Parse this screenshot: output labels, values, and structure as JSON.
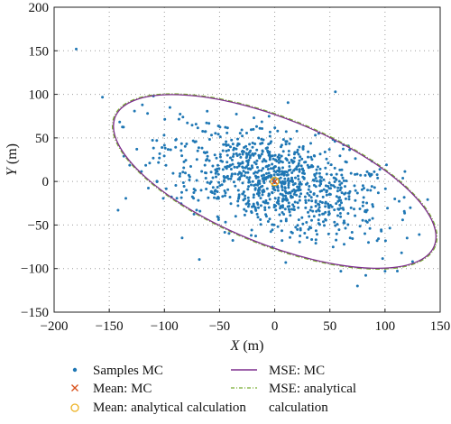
{
  "chart_data": {
    "type": "scatter",
    "xlabel": {
      "var": "X",
      "unit": " (m)"
    },
    "ylabel": {
      "var": "Y",
      "unit": " (m)"
    },
    "xlim": [
      -200,
      150
    ],
    "ylim": [
      -150,
      200
    ],
    "xticks": [
      "−200",
      "−150",
      "−100",
      "−50",
      "0",
      "50",
      "100",
      "150"
    ],
    "yticks": [
      "−150",
      "−100",
      "−50",
      "0",
      "50",
      "100",
      "150",
      "200"
    ],
    "xtick_values": [
      -200,
      -150,
      -100,
      -50,
      0,
      50,
      100,
      150
    ],
    "ytick_values": [
      -150,
      -100,
      -50,
      0,
      50,
      100,
      150,
      200
    ],
    "grid": "dotted",
    "colors": {
      "samples": "#1f77b4",
      "mean_mc": "#d9531e",
      "mean_analytical": "#edb120",
      "mse_mc": "#7e2f8e",
      "mse_analytical": "#77ac30"
    },
    "series": [
      {
        "name": "Samples MC",
        "kind": "points",
        "count": 1000,
        "seed": 12345,
        "distribution": {
          "sigma_major": 52,
          "sigma_minor": 27,
          "angle_deg": -22
        },
        "outliers": [
          [
            -180,
            152
          ],
          [
            -142,
            -33
          ],
          [
            -120,
            88
          ],
          [
            -110,
            98
          ],
          [
            10,
            -93
          ],
          [
            75,
            -120
          ],
          [
            100,
            -103
          ],
          [
            115,
            -82
          ],
          [
            125,
            -92
          ],
          [
            120,
            -65
          ],
          [
            60,
            -103
          ],
          [
            55,
            103
          ],
          [
            85,
            -70
          ],
          [
            -95,
            85
          ],
          [
            -125,
            37
          ]
        ]
      },
      {
        "name": "Mean: MC",
        "kind": "marker",
        "x": 0,
        "y": 0
      },
      {
        "name": "Mean: analytical calculation",
        "kind": "marker",
        "x": 0,
        "y": 0
      },
      {
        "name": "MSE: MC",
        "kind": "ellipse",
        "center": [
          0,
          0
        ],
        "semi_major": 156,
        "semi_minor": 72,
        "angle_deg": -22
      },
      {
        "name": "MSE: analytical calculation",
        "kind": "ellipse",
        "center": [
          0,
          0
        ],
        "semi_major": 157,
        "semi_minor": 73,
        "angle_deg": -22
      }
    ],
    "legend": {
      "placement": "bottom",
      "entries": [
        {
          "label": "Samples MC"
        },
        {
          "label": "MSE: MC"
        },
        {
          "label": "Mean: MC"
        },
        {
          "label_lines": [
            "MSE: analytical",
            "calculation"
          ]
        },
        {
          "label": "Mean: analytical calculation"
        }
      ]
    }
  }
}
